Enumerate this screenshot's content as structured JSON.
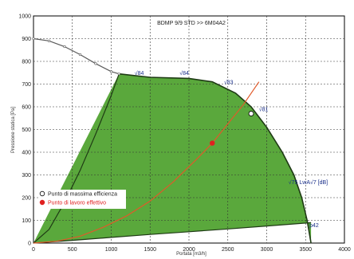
{
  "chart_data": {
    "type": "area",
    "title": "BDMP 9/9 STD >> 6M04A2",
    "xlabel": "Portata [m3/h]",
    "ylabel": "Pressione statica [Pa]",
    "xlim": [
      0,
      4000
    ],
    "ylim": [
      0,
      1000
    ],
    "x_ticks": [
      "0",
      "500",
      "1000",
      "1500",
      "2000",
      "2500",
      "3000",
      "3500",
      "4000"
    ],
    "y_ticks": [
      "0",
      "100",
      "200",
      "300",
      "400",
      "500",
      "600",
      "700",
      "800",
      "900",
      "1000"
    ],
    "grid": true,
    "colors": {
      "area": "#5aa83c",
      "area_outline": "#1e3a14",
      "system_curve": "#e05a2a",
      "max_curve": "#5a5a5a",
      "operating_point": "#e02020",
      "max_efficiency_point": "#ffffff",
      "annotations": "#1a2f8a"
    },
    "operating_area": {
      "upper_boundary": {
        "x": [
          1100,
          1500,
          2000,
          2300,
          2600,
          2800,
          3000,
          3200,
          3350,
          3450,
          3520,
          3570
        ],
        "y": [
          745,
          730,
          725,
          710,
          660,
          600,
          510,
          400,
          300,
          200,
          100,
          0
        ]
      },
      "left_boundary": {
        "x": [
          1100,
          1000,
          800,
          600,
          400,
          200,
          0
        ],
        "y": [
          745,
          650,
          480,
          320,
          180,
          60,
          0
        ]
      },
      "lower_boundary": {
        "x": [
          0,
          500,
          1000,
          1500,
          2000,
          2500,
          3000,
          3570
        ],
        "y": [
          0,
          12,
          25,
          38,
          50,
          62,
          75,
          90
        ]
      }
    },
    "series": [
      {
        "kind": "max_speed_curve",
        "x": [
          0,
          200,
          400,
          600,
          800,
          1000,
          1100
        ],
        "y": [
          900,
          890,
          865,
          830,
          790,
          755,
          745
        ]
      },
      {
        "kind": "system_curve",
        "x": [
          0,
          300,
          600,
          900,
          1200,
          1500,
          1800,
          2100,
          2300,
          2500,
          2700,
          2900
        ],
        "y": [
          0,
          8,
          30,
          70,
          120,
          185,
          270,
          370,
          440,
          525,
          610,
          710
        ]
      }
    ],
    "points": [
      {
        "label": "Punto di massima efficienza",
        "x": 2800,
        "y": 570
      },
      {
        "label": "Punto di lavoro effettivo",
        "x": 2300,
        "y": 440
      }
    ],
    "annotations": [
      {
        "text": "√84",
        "x": 1300,
        "y": 740
      },
      {
        "text": "√84",
        "x": 1880,
        "y": 740
      },
      {
        "text": "√83",
        "x": 2450,
        "y": 700
      },
      {
        "text": "√81",
        "x": 2900,
        "y": 580
      },
      {
        "text": "√75 LwA√7 [dB]",
        "x": 3280,
        "y": 260
      },
      {
        "text": "p42",
        "x": 3550,
        "y": 70
      }
    ],
    "legend": {
      "placement": "left"
    }
  }
}
